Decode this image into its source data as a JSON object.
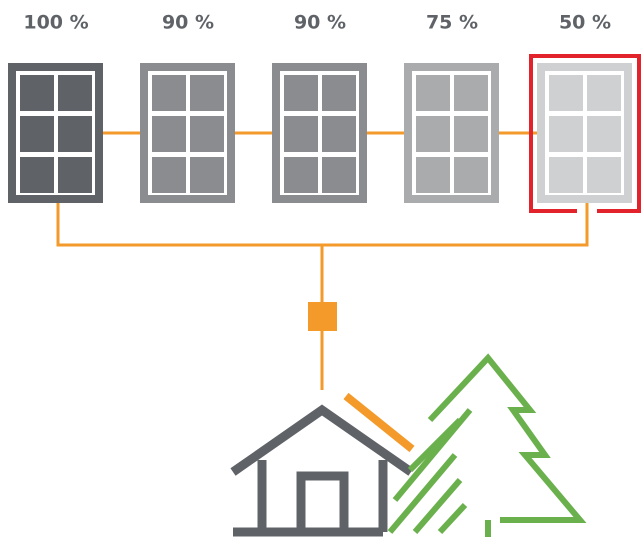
{
  "panels": [
    {
      "label": "100 %"
    },
    {
      "label": "90 %"
    },
    {
      "label": "90 %"
    },
    {
      "label": "75 %"
    },
    {
      "label": "50 %"
    }
  ]
}
